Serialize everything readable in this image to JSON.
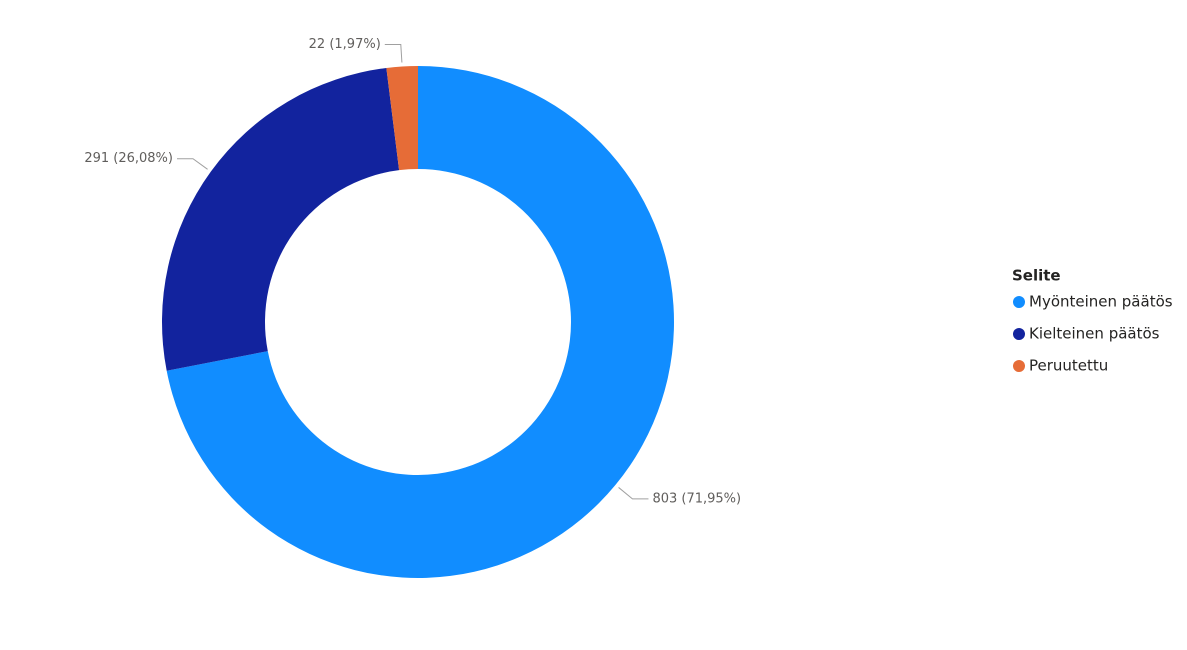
{
  "chart_data": {
    "type": "donut",
    "legend_title": "Selite",
    "categories": [
      "Myönteinen päätös",
      "Kielteinen päätös",
      "Peruutettu"
    ],
    "values": [
      803,
      291,
      22
    ],
    "value_labels": [
      "803 (71,95%)",
      "291 (26,08%)",
      "22 (1,97%)"
    ],
    "colors": [
      "#118DFF",
      "#12239E",
      "#E66C37"
    ],
    "legend_position": "right"
  }
}
